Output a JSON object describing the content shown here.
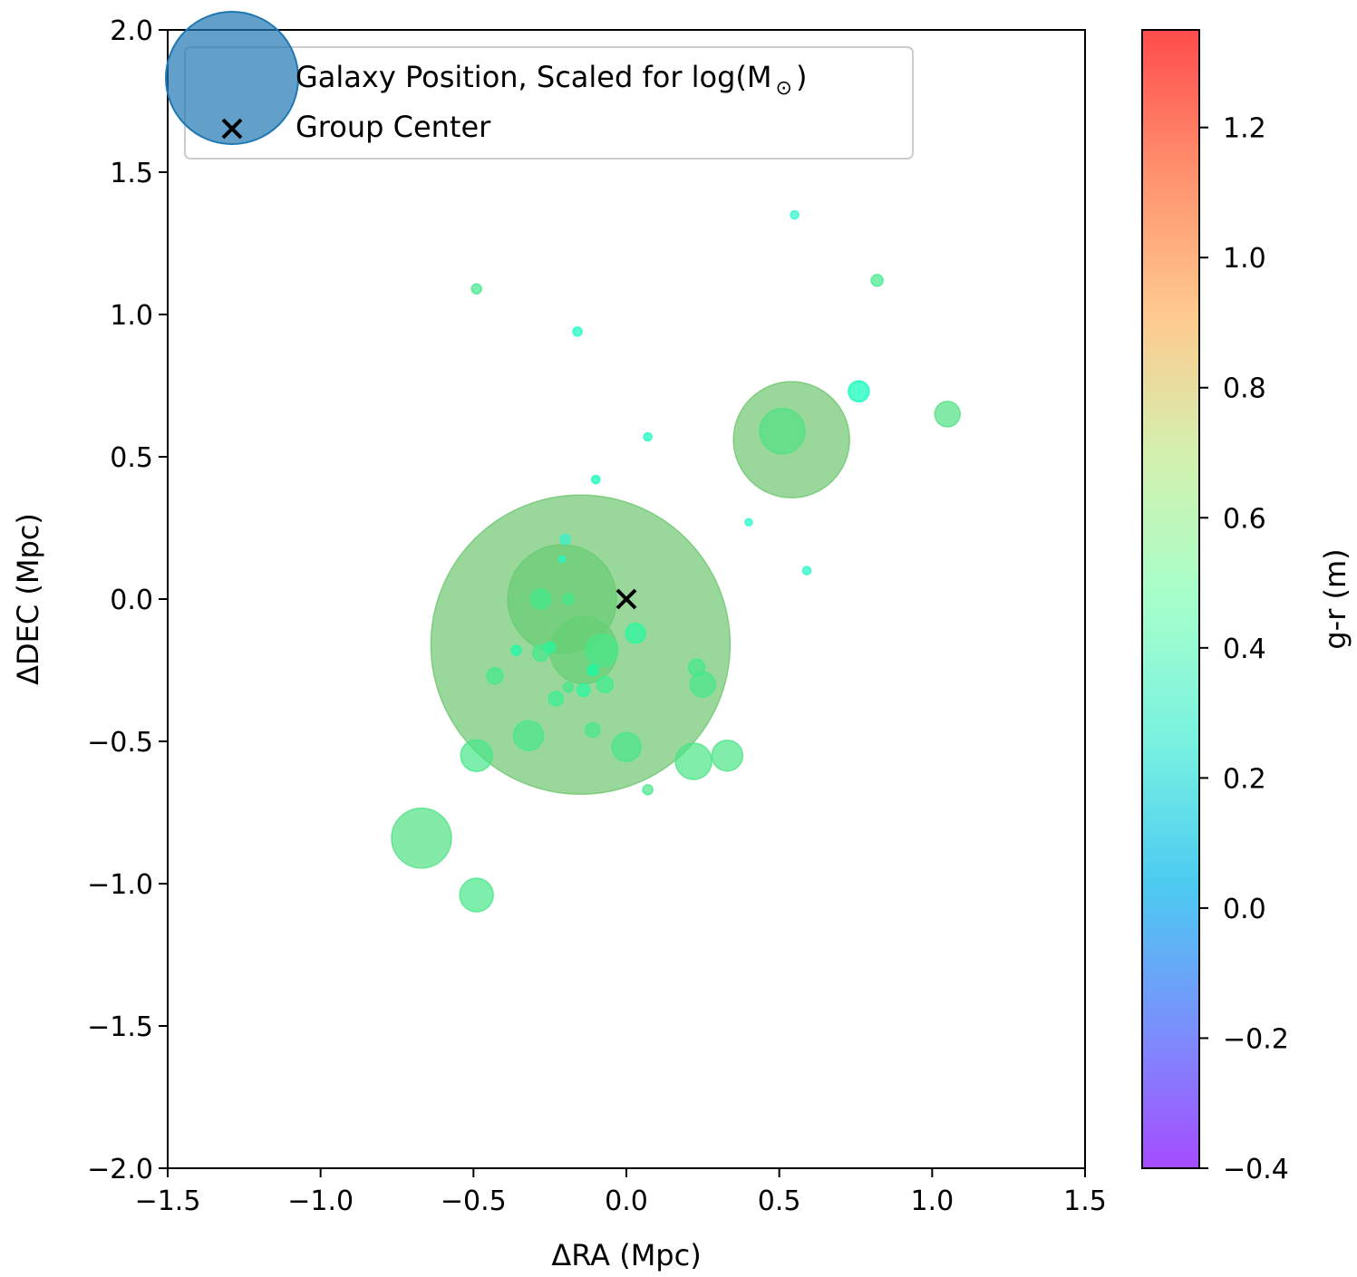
{
  "chart_data": {
    "type": "scatter",
    "xlabel": "ΔRA (Mpc)",
    "ylabel": "ΔDEC (Mpc)",
    "xlim": [
      -1.5,
      1.5
    ],
    "ylim": [
      -2.0,
      2.0
    ],
    "x_ticks": [
      -1.5,
      -1.0,
      -0.5,
      0.0,
      0.5,
      1.0,
      1.5
    ],
    "x_tick_labels": [
      "−1.5",
      "−1.0",
      "−0.5",
      "0.0",
      "0.5",
      "1.0",
      "1.5"
    ],
    "y_ticks": [
      -2.0,
      -1.5,
      -1.0,
      -0.5,
      0.0,
      0.5,
      1.0,
      1.5,
      2.0
    ],
    "y_tick_labels": [
      "−2.0",
      "−1.5",
      "−1.0",
      "−0.5",
      "0.0",
      "0.5",
      "1.0",
      "1.5",
      "2.0"
    ],
    "grid": false,
    "legend": {
      "placement": "top-left",
      "entries": [
        {
          "label": "Galaxy Position, Scaled for log(M",
          "subscript": "⊙",
          "suffix": ")",
          "marker": "circle",
          "color": "#1f77b4"
        },
        {
          "label": "Group Center",
          "marker": "x",
          "color": "#000000"
        }
      ]
    },
    "colorbar": {
      "label": "g-r (m)",
      "colormap": "rainbow",
      "range": [
        -0.4,
        1.35
      ],
      "ticks": [
        -0.4,
        -0.2,
        0.0,
        0.2,
        0.4,
        0.6,
        0.8,
        1.0,
        1.2
      ],
      "tick_labels": [
        "−0.4",
        "−0.2",
        "0.0",
        "0.2",
        "0.4",
        "0.6",
        "0.8",
        "1.0",
        "1.2"
      ]
    },
    "series": [
      {
        "name": "Galaxy Position, Scaled for log(M⊙)",
        "alpha": 0.7,
        "points": [
          {
            "x": -0.15,
            "y": -0.16,
            "size": 330,
            "color_value": 0.85
          },
          {
            "x": 0.54,
            "y": 0.56,
            "size": 128,
            "color_value": 0.85
          },
          {
            "x": -0.21,
            "y": 0.0,
            "size": 120,
            "color_value": 0.83
          },
          {
            "x": -0.14,
            "y": -0.18,
            "size": 74,
            "color_value": 0.82
          },
          {
            "x": -0.67,
            "y": -0.84,
            "size": 66,
            "color_value": 0.75
          },
          {
            "x": 0.51,
            "y": 0.59,
            "size": 50,
            "color_value": 0.75
          },
          {
            "x": -0.08,
            "y": -0.18,
            "size": 36,
            "color_value": 0.72
          },
          {
            "x": 0.22,
            "y": -0.57,
            "size": 40,
            "color_value": 0.73
          },
          {
            "x": 0.33,
            "y": -0.55,
            "size": 34,
            "color_value": 0.73
          },
          {
            "x": -0.32,
            "y": -0.48,
            "size": 33,
            "color_value": 0.72
          },
          {
            "x": -0.49,
            "y": -0.55,
            "size": 35,
            "color_value": 0.72
          },
          {
            "x": -0.49,
            "y": -1.04,
            "size": 37,
            "color_value": 0.72
          },
          {
            "x": 0.0,
            "y": -0.52,
            "size": 32,
            "color_value": 0.72
          },
          {
            "x": 1.05,
            "y": 0.65,
            "size": 28,
            "color_value": 0.75
          },
          {
            "x": 0.25,
            "y": -0.3,
            "size": 28,
            "color_value": 0.72
          },
          {
            "x": 0.23,
            "y": -0.24,
            "size": 18,
            "color_value": 0.7
          },
          {
            "x": -0.28,
            "y": 0.0,
            "size": 22,
            "color_value": 0.7
          },
          {
            "x": -0.43,
            "y": -0.27,
            "size": 18,
            "color_value": 0.7
          },
          {
            "x": -0.28,
            "y": -0.19,
            "size": 18,
            "color_value": 0.7
          },
          {
            "x": -0.07,
            "y": -0.3,
            "size": 18,
            "color_value": 0.68
          },
          {
            "x": -0.11,
            "y": -0.46,
            "size": 16,
            "color_value": 0.7
          },
          {
            "x": -0.23,
            "y": -0.35,
            "size": 16,
            "color_value": 0.66
          },
          {
            "x": 0.03,
            "y": -0.12,
            "size": 22,
            "color_value": 0.6
          },
          {
            "x": 0.76,
            "y": 0.73,
            "size": 23,
            "color_value": 0.45
          },
          {
            "x": -0.14,
            "y": -0.32,
            "size": 14,
            "color_value": 0.6
          },
          {
            "x": -0.11,
            "y": -0.25,
            "size": 12,
            "color_value": 0.55
          },
          {
            "x": -0.25,
            "y": -0.17,
            "size": 12,
            "color_value": 0.6
          },
          {
            "x": -0.36,
            "y": -0.18,
            "size": 11,
            "color_value": 0.55
          },
          {
            "x": -0.19,
            "y": 0.0,
            "size": 12,
            "color_value": 0.7
          },
          {
            "x": -0.19,
            "y": -0.31,
            "size": 11,
            "color_value": 0.7
          },
          {
            "x": -0.49,
            "y": 1.09,
            "size": 11,
            "color_value": 0.7
          },
          {
            "x": 0.82,
            "y": 1.12,
            "size": 13,
            "color_value": 0.7
          },
          {
            "x": 0.07,
            "y": -0.67,
            "size": 11,
            "color_value": 0.72
          },
          {
            "x": -0.2,
            "y": 0.21,
            "size": 11,
            "color_value": 0.3
          },
          {
            "x": 0.55,
            "y": 1.35,
            "size": 9,
            "color_value": 0.33
          },
          {
            "x": -0.16,
            "y": 0.94,
            "size": 10,
            "color_value": 0.4
          },
          {
            "x": 0.07,
            "y": 0.57,
            "size": 9,
            "color_value": 0.4
          },
          {
            "x": -0.1,
            "y": 0.42,
            "size": 9,
            "color_value": 0.45
          },
          {
            "x": 0.4,
            "y": 0.27,
            "size": 8,
            "color_value": 0.35
          },
          {
            "x": 0.59,
            "y": 0.1,
            "size": 9,
            "color_value": 0.38
          },
          {
            "x": -0.21,
            "y": 0.14,
            "size": 7,
            "color_value": 0.35
          }
        ]
      },
      {
        "name": "Group Center",
        "marker": "x",
        "points": [
          {
            "x": 0.0,
            "y": 0.0
          }
        ]
      }
    ]
  }
}
